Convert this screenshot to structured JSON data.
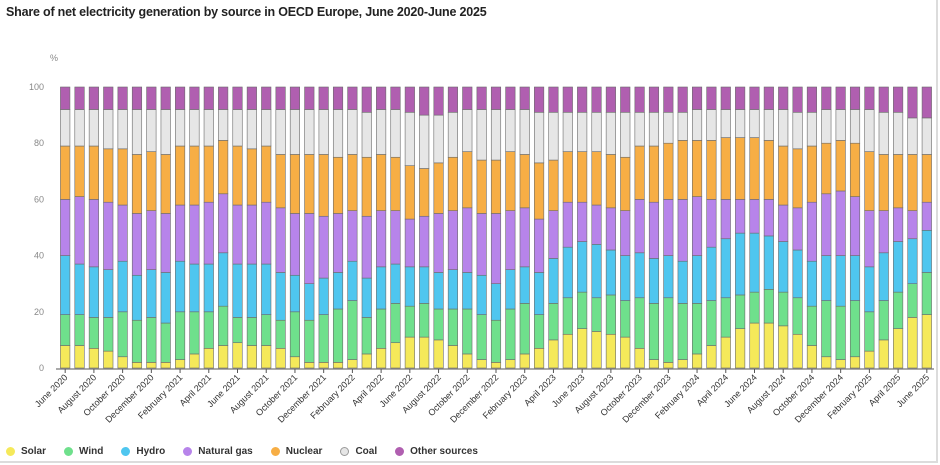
{
  "chart_data": {
    "type": "bar",
    "stacked": true,
    "title": "Share of net electricity generation by source in OECD Europe, June 2020-June 2025",
    "ylabel": "%",
    "xlabel": "",
    "ylim": [
      0,
      100
    ],
    "yticks": [
      0,
      20,
      40,
      60,
      80,
      100
    ],
    "grid": false,
    "legend_position": "bottom-left",
    "categories": [
      "Jun 2020",
      "Jul 2020",
      "Aug 2020",
      "Sep 2020",
      "Oct 2020",
      "Nov 2020",
      "Dec 2020",
      "Jan 2021",
      "Feb 2021",
      "Mar 2021",
      "Apr 2021",
      "May 2021",
      "Jun 2021",
      "Jul 2021",
      "Aug 2021",
      "Sep 2021",
      "Oct 2021",
      "Nov 2021",
      "Dec 2021",
      "Jan 2022",
      "Feb 2022",
      "Mar 2022",
      "Apr 2022",
      "May 2022",
      "Jun 2022",
      "Jul 2022",
      "Aug 2022",
      "Sep 2022",
      "Oct 2022",
      "Nov 2022",
      "Dec 2022",
      "Jan 2023",
      "Feb 2023",
      "Mar 2023",
      "Apr 2023",
      "May 2023",
      "Jun 2023",
      "Jul 2023",
      "Aug 2023",
      "Sep 2023",
      "Oct 2023",
      "Nov 2023",
      "Dec 2023",
      "Jan 2024",
      "Feb 2024",
      "Mar 2024",
      "Apr 2024",
      "May 2024",
      "Jun 2024",
      "Jul 2024",
      "Aug 2024",
      "Sep 2024",
      "Oct 2024",
      "Nov 2024",
      "Dec 2024",
      "Jan 2025",
      "Feb 2025",
      "Mar 2025",
      "Apr 2025",
      "May 2025",
      "Jun 2025"
    ],
    "xtick_labels": [
      "June 2020",
      "August 2020",
      "October 2020",
      "December 2020",
      "February 2021",
      "April 2021",
      "June 2021",
      "August 2021",
      "October 2021",
      "December 2021",
      "February 2022",
      "April 2022",
      "June 2022",
      "August 2022",
      "October 2022",
      "December 2022",
      "February 2023",
      "April 2023",
      "June 2023",
      "August 2023",
      "October 2023",
      "December 2023",
      "February 2024",
      "April 2024",
      "June 2024",
      "August 2024",
      "October 2024",
      "December 2024",
      "February 2025",
      "April 2025",
      "June 2025"
    ],
    "series": [
      {
        "name": "Solar",
        "color": "#f5e95a",
        "values": [
          8,
          8,
          7,
          6,
          4,
          2,
          2,
          2,
          3,
          5,
          7,
          8,
          9,
          8,
          8,
          7,
          4,
          2,
          2,
          2,
          3,
          5,
          7,
          9,
          11,
          11,
          10,
          8,
          5,
          3,
          2,
          3,
          5,
          7,
          10,
          12,
          14,
          13,
          12,
          11,
          7,
          3,
          2,
          3,
          5,
          8,
          11,
          14,
          16,
          16,
          15,
          12,
          8,
          4,
          3,
          4,
          6,
          10,
          14,
          18,
          19
        ]
      },
      {
        "name": "Wind",
        "color": "#6fe08c",
        "values": [
          11,
          11,
          11,
          12,
          16,
          15,
          16,
          14,
          17,
          15,
          13,
          14,
          9,
          10,
          11,
          10,
          16,
          15,
          17,
          19,
          21,
          13,
          14,
          14,
          11,
          12,
          11,
          13,
          16,
          16,
          15,
          18,
          18,
          12,
          13,
          13,
          13,
          12,
          14,
          13,
          18,
          20,
          23,
          20,
          18,
          16,
          14,
          12,
          11,
          12,
          12,
          13,
          14,
          20,
          19,
          20,
          14,
          14,
          13,
          12,
          15
        ]
      },
      {
        "name": "Hydro",
        "color": "#4fc6ef",
        "values": [
          21,
          18,
          18,
          17,
          18,
          16,
          17,
          18,
          18,
          17,
          17,
          19,
          19,
          19,
          18,
          17,
          13,
          13,
          13,
          13,
          14,
          14,
          15,
          14,
          14,
          13,
          13,
          14,
          13,
          14,
          13,
          14,
          13,
          15,
          16,
          18,
          18,
          19,
          16,
          16,
          16,
          16,
          15,
          15,
          17,
          19,
          21,
          22,
          21,
          19,
          18,
          17,
          16,
          16,
          18,
          16,
          16,
          17,
          18,
          16,
          15
        ]
      },
      {
        "name": "Natural gas",
        "color": "#b784ea",
        "values": [
          20,
          24,
          24,
          24,
          20,
          22,
          21,
          21,
          20,
          21,
          22,
          21,
          21,
          21,
          22,
          23,
          22,
          25,
          22,
          21,
          18,
          22,
          20,
          19,
          17,
          18,
          21,
          21,
          23,
          22,
          25,
          21,
          21,
          19,
          17,
          16,
          14,
          14,
          15,
          16,
          19,
          20,
          20,
          22,
          21,
          17,
          14,
          12,
          12,
          13,
          13,
          15,
          21,
          22,
          23,
          21,
          20,
          15,
          12,
          10,
          10
        ]
      },
      {
        "name": "Nuclear",
        "color": "#f7ae45",
        "values": [
          19,
          18,
          19,
          19,
          20,
          21,
          21,
          21,
          21,
          21,
          20,
          19,
          21,
          20,
          20,
          19,
          21,
          21,
          22,
          20,
          20,
          21,
          20,
          19,
          19,
          17,
          18,
          19,
          20,
          19,
          19,
          21,
          19,
          20,
          18,
          18,
          18,
          19,
          19,
          19,
          19,
          20,
          20,
          21,
          20,
          21,
          22,
          22,
          22,
          21,
          21,
          21,
          20,
          18,
          18,
          19,
          21,
          20,
          19,
          20,
          17
        ]
      },
      {
        "name": "Coal",
        "color": "#e6e6e6",
        "values": [
          13,
          13,
          13,
          14,
          14,
          16,
          15,
          16,
          13,
          13,
          13,
          11,
          13,
          14,
          13,
          16,
          16,
          16,
          16,
          17,
          16,
          16,
          16,
          17,
          19,
          19,
          17,
          16,
          15,
          18,
          18,
          15,
          16,
          18,
          17,
          14,
          14,
          14,
          15,
          16,
          12,
          12,
          11,
          10,
          11,
          11,
          10,
          10,
          10,
          11,
          13,
          13,
          12,
          12,
          11,
          12,
          15,
          15,
          15,
          13,
          13
        ]
      },
      {
        "name": "Other sources",
        "color": "#b05fb0",
        "values": [
          8,
          8,
          8,
          8,
          8,
          8,
          8,
          8,
          8,
          8,
          8,
          8,
          8,
          8,
          8,
          8,
          8,
          8,
          8,
          8,
          8,
          9,
          8,
          8,
          9,
          10,
          10,
          9,
          8,
          8,
          8,
          8,
          8,
          9,
          9,
          9,
          9,
          9,
          9,
          9,
          9,
          9,
          9,
          9,
          8,
          8,
          8,
          8,
          8,
          8,
          8,
          9,
          9,
          8,
          8,
          8,
          8,
          9,
          9,
          11,
          11
        ]
      }
    ]
  },
  "legend": [
    {
      "label": "Solar",
      "color": "#f5e95a"
    },
    {
      "label": "Wind",
      "color": "#6fe08c"
    },
    {
      "label": "Hydro",
      "color": "#4fc6ef"
    },
    {
      "label": "Natural gas",
      "color": "#b784ea"
    },
    {
      "label": "Nuclear",
      "color": "#f7ae45"
    },
    {
      "label": "Coal",
      "color": "#e6e6e6"
    },
    {
      "label": "Other sources",
      "color": "#b05fb0"
    }
  ]
}
